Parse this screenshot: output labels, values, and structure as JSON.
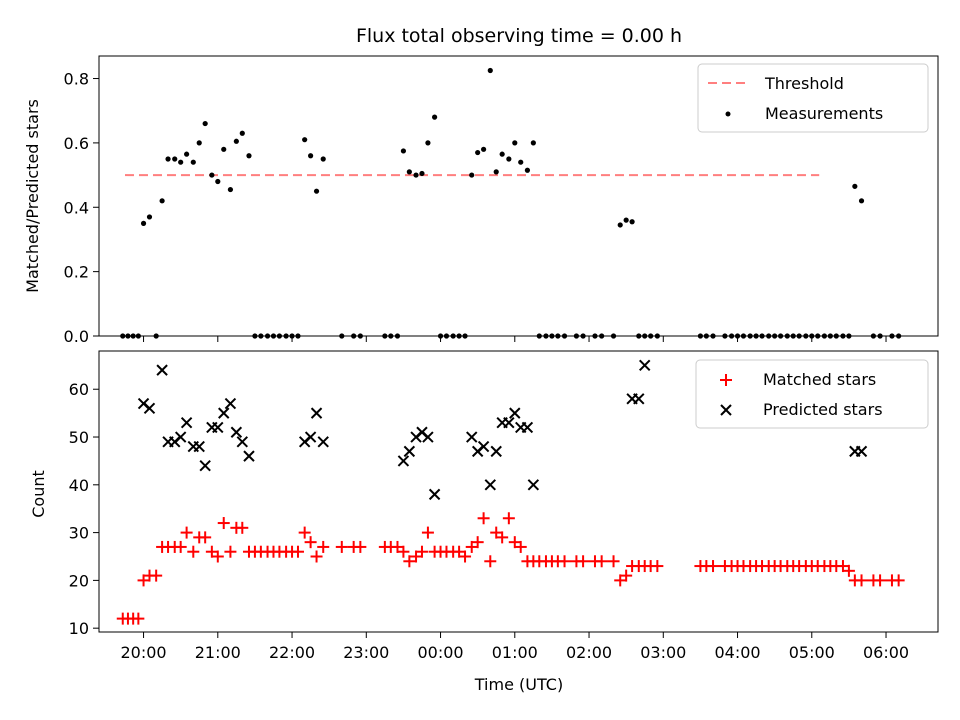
{
  "chart_data": [
    {
      "type": "scatter",
      "title": "Flux total observing time = 0.00 h",
      "xlabel": "",
      "ylabel": "Matched/Predicted stars",
      "ylim": [
        0,
        0.87
      ],
      "xlim": [
        19.4,
        30.7
      ],
      "yticks": [
        "0.0",
        "0.2",
        "0.4",
        "0.6",
        "0.8"
      ],
      "threshold": 0.5,
      "threshold_x": [
        19.75,
        29.1
      ],
      "threshold_color": "#ff7f7f",
      "legend_position": "upper right",
      "legend": [
        "Threshold",
        "Measurements"
      ],
      "series": [
        {
          "name": "Measurements",
          "marker": "dot",
          "color": "#000000",
          "x": [
            19.72,
            19.79,
            19.86,
            19.93,
            20.0,
            20.08,
            20.17,
            20.25,
            20.33,
            20.42,
            20.5,
            20.58,
            20.67,
            20.75,
            20.83,
            20.92,
            21.0,
            21.08,
            21.17,
            21.25,
            21.33,
            21.42,
            21.5,
            21.58,
            21.67,
            21.75,
            21.83,
            21.92,
            22.0,
            22.08,
            22.17,
            22.25,
            22.33,
            22.42,
            22.67,
            22.83,
            22.92,
            23.25,
            23.33,
            23.42,
            23.5,
            23.58,
            23.67,
            23.75,
            23.83,
            23.92,
            24.0,
            24.08,
            24.17,
            24.25,
            24.33,
            24.42,
            24.5,
            24.58,
            24.67,
            24.75,
            24.83,
            24.92,
            25.0,
            25.08,
            25.17,
            25.25,
            25.33,
            25.42,
            25.5,
            25.58,
            25.67,
            25.83,
            25.92,
            26.08,
            26.17,
            26.33,
            26.42,
            26.5,
            26.58,
            26.67,
            26.75,
            26.83,
            26.92,
            27.5,
            27.58,
            27.67,
            27.83,
            27.92,
            28.0,
            28.08,
            28.17,
            28.25,
            28.33,
            28.42,
            28.5,
            28.58,
            28.67,
            28.75,
            28.83,
            28.92,
            29.0,
            29.08,
            29.17,
            29.25,
            29.33,
            29.42,
            29.5,
            29.58,
            29.67,
            29.83,
            29.92,
            30.08,
            30.17
          ],
          "y": [
            0,
            0,
            0,
            0,
            0.35,
            0.37,
            0,
            0.42,
            0.55,
            0.55,
            0.54,
            0.565,
            0.54,
            0.6,
            0.66,
            0.5,
            0.48,
            0.58,
            0.455,
            0.605,
            0.63,
            0.56,
            0,
            0,
            0,
            0,
            0,
            0,
            0,
            0,
            0.61,
            0.56,
            0.45,
            0.55,
            0,
            0,
            0,
            0,
            0,
            0,
            0.575,
            0.51,
            0.5,
            0.505,
            0.6,
            0.68,
            0,
            0,
            0,
            0,
            0,
            0.5,
            0.57,
            0.58,
            0.825,
            0.51,
            0.565,
            0.55,
            0.6,
            0.54,
            0.515,
            0.6,
            0,
            0,
            0,
            0,
            0,
            0,
            0,
            0,
            0,
            0,
            0.345,
            0.36,
            0.355,
            0,
            0,
            0,
            0,
            0,
            0,
            0,
            0,
            0,
            0,
            0,
            0,
            0,
            0,
            0,
            0,
            0,
            0,
            0,
            0,
            0,
            0,
            0,
            0,
            0,
            0,
            0,
            0,
            0.465,
            0.42,
            0,
            0,
            0,
            0
          ]
        }
      ]
    },
    {
      "type": "scatter",
      "title": "",
      "xlabel": "Time (UTC)",
      "ylabel": "Count",
      "ylim": [
        9.2,
        68
      ],
      "xlim": [
        19.4,
        30.7
      ],
      "yticks": [
        "10",
        "20",
        "30",
        "40",
        "50",
        "60"
      ],
      "xticks": [
        "20:00",
        "21:00",
        "22:00",
        "23:00",
        "00:00",
        "01:00",
        "02:00",
        "03:00",
        "04:00",
        "05:00",
        "06:00"
      ],
      "legend_position": "upper right",
      "legend": [
        "Matched stars",
        "Predicted stars"
      ],
      "series": [
        {
          "name": "Matched stars",
          "marker": "plus",
          "color": "#ff0000",
          "x": [
            19.72,
            19.79,
            19.86,
            19.93,
            20.0,
            20.08,
            20.17,
            20.25,
            20.33,
            20.42,
            20.5,
            20.58,
            20.67,
            20.75,
            20.83,
            20.92,
            21.0,
            21.08,
            21.17,
            21.25,
            21.33,
            21.42,
            21.5,
            21.58,
            21.67,
            21.75,
            21.83,
            21.92,
            22.0,
            22.08,
            22.17,
            22.25,
            22.33,
            22.42,
            22.67,
            22.83,
            22.92,
            23.25,
            23.33,
            23.42,
            23.5,
            23.58,
            23.67,
            23.75,
            23.83,
            23.92,
            24.0,
            24.08,
            24.17,
            24.25,
            24.33,
            24.42,
            24.5,
            24.58,
            24.67,
            24.75,
            24.83,
            24.92,
            25.0,
            25.08,
            25.17,
            25.25,
            25.33,
            25.42,
            25.5,
            25.58,
            25.67,
            25.83,
            25.92,
            26.08,
            26.17,
            26.33,
            26.42,
            26.5,
            26.58,
            26.67,
            26.75,
            26.83,
            26.92,
            27.5,
            27.58,
            27.67,
            27.83,
            27.92,
            28.0,
            28.08,
            28.17,
            28.25,
            28.33,
            28.42,
            28.5,
            28.58,
            28.67,
            28.75,
            28.83,
            28.92,
            29.0,
            29.08,
            29.17,
            29.25,
            29.33,
            29.42,
            29.5,
            29.58,
            29.67,
            29.83,
            29.92,
            30.08,
            30.17
          ],
          "y": [
            12,
            12,
            12,
            12,
            20,
            21,
            21,
            27,
            27,
            27,
            27,
            30,
            26,
            29,
            29,
            26,
            25,
            32,
            26,
            31,
            31,
            26,
            26,
            26,
            26,
            26,
            26,
            26,
            26,
            26,
            30,
            28,
            25,
            27,
            27,
            27,
            27,
            27,
            27,
            27,
            26,
            24,
            25,
            26,
            30,
            26,
            26,
            26,
            26,
            26,
            25,
            27,
            28,
            33,
            24,
            30,
            29,
            33,
            28,
            27,
            24,
            24,
            24,
            24,
            24,
            24,
            24,
            24,
            24,
            24,
            24,
            24,
            20,
            21,
            23,
            23,
            23,
            23,
            23,
            23,
            23,
            23,
            23,
            23,
            23,
            23,
            23,
            23,
            23,
            23,
            23,
            23,
            23,
            23,
            23,
            23,
            23,
            23,
            23,
            23,
            23,
            23,
            22,
            20,
            20,
            20,
            20,
            20,
            20
          ]
        },
        {
          "name": "Predicted stars",
          "marker": "x",
          "color": "#000000",
          "x": [
            20.0,
            20.08,
            20.25,
            20.33,
            20.42,
            20.5,
            20.58,
            20.67,
            20.75,
            20.83,
            20.92,
            21.0,
            21.08,
            21.17,
            21.25,
            21.33,
            21.42,
            22.17,
            22.25,
            22.33,
            22.42,
            23.5,
            23.58,
            23.67,
            23.75,
            23.83,
            23.92,
            24.42,
            24.5,
            24.58,
            24.67,
            24.75,
            24.83,
            24.92,
            25.0,
            25.08,
            25.17,
            25.25,
            26.58,
            26.67,
            26.75,
            29.58,
            29.67
          ],
          "y": [
            57,
            56,
            64,
            49,
            49,
            50,
            53,
            48,
            48,
            44,
            52,
            52,
            55,
            57,
            51,
            49,
            46,
            49,
            50,
            55,
            49,
            45,
            47,
            50,
            51,
            50,
            38,
            50,
            47,
            48,
            40,
            47,
            53,
            53,
            55,
            52,
            52,
            40,
            58,
            58,
            65,
            47,
            47
          ]
        }
      ]
    }
  ]
}
